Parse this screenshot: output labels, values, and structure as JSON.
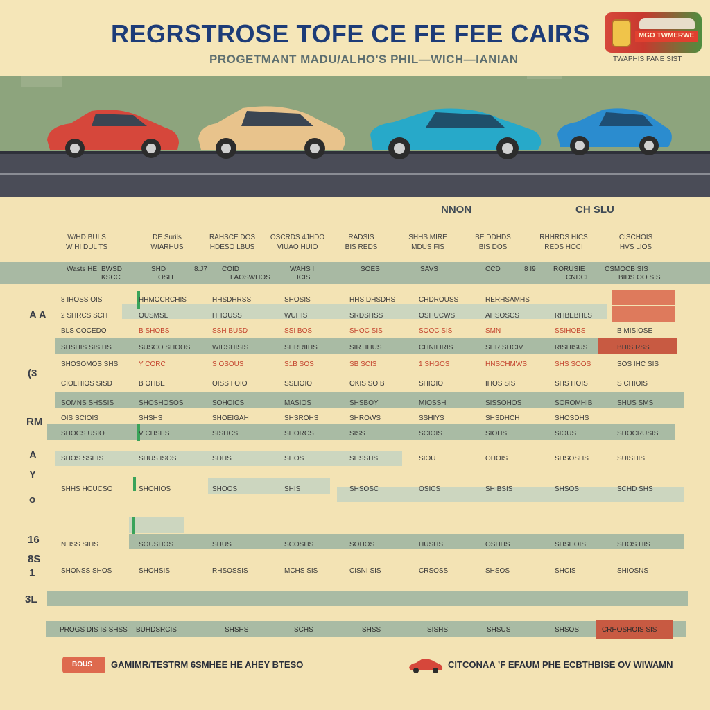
{
  "header": {
    "title": "REGRSTROSE TOFE CE FE FEE CAIRS",
    "subtitle": "PROGETMANT MADU/ALHO'S PHIL—WICH—IANIAN",
    "badge_label": "MGO TWMERWE",
    "badge_caption": "TWAPHIS PANE SIST"
  },
  "scene": {
    "cars": [
      {
        "name": "red-car",
        "color": "#d6473b"
      },
      {
        "name": "beige-car",
        "color": "#e8c38c"
      },
      {
        "name": "teal-car",
        "color": "#27a9c9"
      },
      {
        "name": "blue-car",
        "color": "#2b8ccf"
      }
    ]
  },
  "table": {
    "group_tags": [
      "NNON",
      "CH SLU"
    ],
    "column_headers": [
      [
        "W/HD BULS",
        "W HI DUL TS"
      ],
      [
        "DE Surils",
        "WIARHUS"
      ],
      [
        "RAHSCE DOS",
        "HDESO LBUS"
      ],
      [
        "OSCRDS 4JHDO",
        "VIUAO HUIO"
      ],
      [
        "RADSIS",
        "BIS REDS"
      ],
      [
        "SHHS MIRE",
        "MDUS FIS"
      ],
      [
        "BE DDHDS",
        "BIS DOS"
      ],
      [
        "RHHRDS HICS",
        "REDS HOCI"
      ],
      [
        "CISCHOIS",
        "HVS LIOS"
      ]
    ],
    "band_cells": [
      "Wasts HE",
      "BWSD",
      "SHD",
      "8.J7",
      "COID",
      "WAHS I",
      "SOES",
      "SAVS",
      "CCD",
      "8 I9",
      "RORUSIE",
      "CSMOCB SIS",
      "KSCC",
      "OSH",
      "LAOSWHOS",
      "ICIS",
      "CNDCE",
      "BIDS OO SIS"
    ],
    "side_labels": [
      "A A",
      "(3",
      "RM",
      "A",
      "Y",
      "o",
      "16",
      "8S",
      "1",
      "3L"
    ],
    "rows": [
      [
        "8 IHOSS OIS",
        "HHMOCRCHIS",
        "HHSDHRSS",
        "SHOSIS",
        "HHS DHSDHS",
        "CHDROUSS",
        "RERHSAMHS"
      ],
      [
        "2 SHRCS SCH",
        "OUSMSL",
        "HHOUSS",
        "WUHIS",
        "SRDSHSS",
        "OSHUCWS",
        "AHSOSCS",
        "RHBEBHLS"
      ],
      [
        "BLS COCEDO",
        "B SHOBS",
        "SSH BUSD",
        "SSI BOS",
        "SHOC SIS",
        "SOOC SIS",
        "SMN",
        "SSIHOBS",
        "B MISIOSE"
      ],
      [
        "SHSHIS SISIHS",
        "SUSCO SHOOS",
        "WIDSHISIS",
        "SHRRIIHS",
        "SIRTIHUS",
        "CHNILIRIS",
        "SHR SHCIV",
        "RISHISUS",
        "BHIS RSS"
      ],
      [
        "SHOSOMOS SHS",
        "Y CORC",
        "S OSOUS",
        "S1B SOS",
        "SB SCIS",
        "1 SHGOS",
        "HNSCHMWS",
        "SHS SOOS",
        "SOS IHC SIS"
      ],
      [
        "CIOLHIOS SISD",
        "B OHBE",
        "OISS I OIO",
        "SSLIOIO",
        "OKIS SOIB",
        "SHIOIO",
        "IHOS SIS",
        "SHS HOIS",
        "S CHIOIS"
      ],
      [
        "SOMNS SHSSIS",
        "SHOSHOSOS",
        "SOHOICS",
        "MASIOS",
        "SHSBOY",
        "MIOSSH",
        "SISSOHOS",
        "SOROMHIB",
        "SHUS SMS"
      ],
      [
        "OIS SCIOIS",
        "SHSHS",
        "SHOEIGAH",
        "SHSROHS",
        "SHROWS",
        "SSHIYS",
        "SHSDHCH",
        "SHOSDHS"
      ],
      [
        "SHOCS USIO",
        "V CHSHS",
        "SISHCS",
        "SHORCS",
        "SISS",
        "SCIOIS",
        "SIOHS",
        "SIOUS",
        "SHOCRUSIS"
      ],
      [
        "SHOS SSHIS",
        "SHUS ISOS",
        "SDHS",
        "SHOS",
        "SHSSHS",
        "SIOU",
        "OHOIS",
        "SHSOSHS",
        "SUISHIS"
      ],
      [
        "SHHS HOUCSO",
        "SHOHIOS",
        "SHOOS",
        "SHIS",
        "SHSOSC",
        "OSICS",
        "SH BSIS",
        "SHSOS",
        "SCHD SHS"
      ],
      [
        "NHSS SIHS",
        "SOUSHOS",
        "SHUS",
        "SCOSHS",
        "SOHOS",
        "HUSHS",
        "OSHHS",
        "SHSHOIS",
        "SHOS HIS"
      ],
      [
        "SHONSS SHOS",
        "SHOHSIS",
        "RHSOSSIS",
        "MCHS SIS",
        "CISNI SIS",
        "CRSOSS",
        "SHSOS",
        "SHCIS",
        "SHIOSNS"
      ]
    ],
    "total_row": [
      "PROGS DIS IS SHSS",
      "BUHDSRCIS",
      "SHSHS",
      "SCHS",
      "SHSS",
      "SISHS",
      "SHSUS",
      "SHSOS",
      "CRHOSHOIS SIS"
    ]
  },
  "footer": {
    "left_tag": "BOUS",
    "left_text": "GAMIMR/TESTRM 6SMHEE HE AHEY BTESO",
    "right_text": "CITCONAA ’F EFAUM PHE ECBTHBISE OV WIWAMN"
  },
  "colors": {
    "background": "#f3e3b4",
    "title": "#1d3c78",
    "band_green": "#a9bba4",
    "accent_orange": "#de7a5c",
    "road": "#4a4c57"
  }
}
